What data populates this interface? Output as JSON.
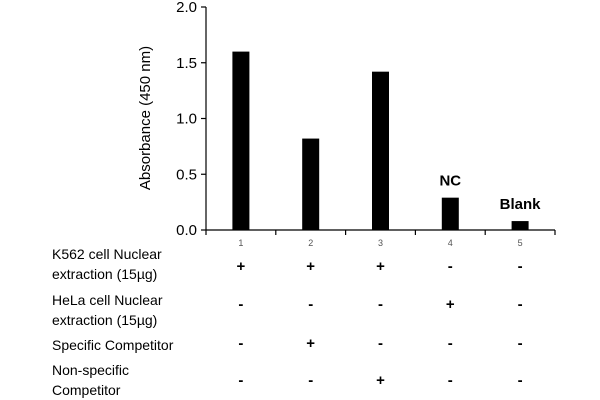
{
  "chart_data": {
    "type": "bar",
    "categories": [
      "1",
      "2",
      "3",
      "4",
      "5"
    ],
    "values": [
      1.6,
      0.82,
      1.42,
      0.29,
      0.08
    ],
    "ylabel": "Absorbance (450 nm)",
    "ylim": [
      0,
      2.0
    ],
    "yticks": [
      "0.0",
      "0.5",
      "1.0",
      "1.5",
      "2.0"
    ],
    "grid": false,
    "bar_color": "#000000",
    "annotations": [
      {
        "category": "4",
        "text": "NC"
      },
      {
        "category": "5",
        "text": "Blank"
      }
    ]
  },
  "conditions": [
    {
      "label_lines": [
        "K562 cell Nuclear",
        "extraction (15µg)"
      ],
      "signs": [
        "+",
        "+",
        "+",
        "-",
        "-"
      ]
    },
    {
      "label_lines": [
        "HeLa cell Nuclear",
        "extraction (15µg)"
      ],
      "signs": [
        "-",
        "-",
        "-",
        "+",
        "-"
      ]
    },
    {
      "label_lines": [
        "Specific Competitor"
      ],
      "signs": [
        "-",
        "+",
        "-",
        "-",
        "-"
      ]
    },
    {
      "label_lines": [
        "Non-specific",
        "Competitor"
      ],
      "signs": [
        "-",
        "-",
        "+",
        "-",
        "-"
      ]
    }
  ]
}
